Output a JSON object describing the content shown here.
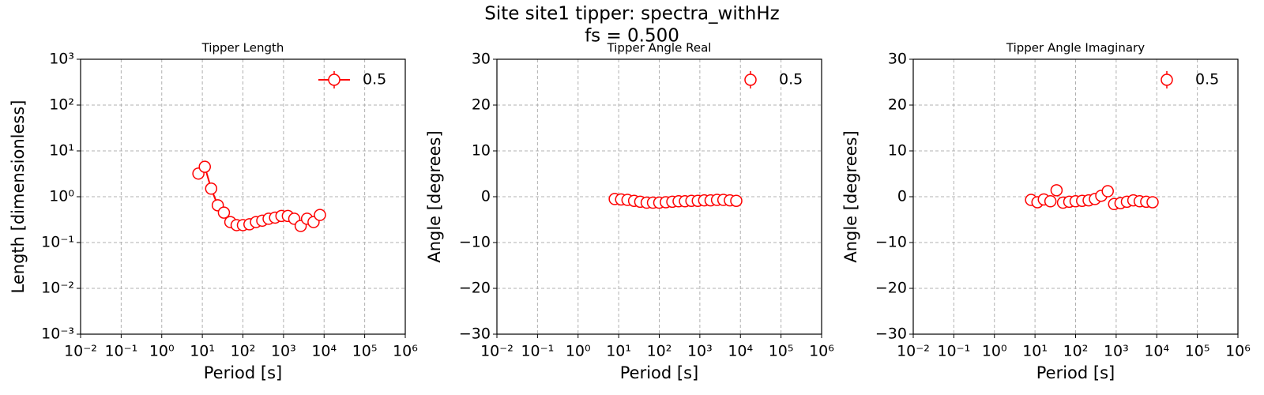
{
  "title": "Site site1 tipper: spectra_withHz",
  "subtitle": "fs = 0.500",
  "chart_data": [
    {
      "type": "line",
      "title": "Tipper Length",
      "xlabel": "Period [s]",
      "ylabel": "Length [dimensionless]",
      "x": [
        8,
        11.5,
        16.5,
        24,
        34,
        49,
        70,
        100,
        145,
        210,
        300,
        430,
        620,
        890,
        1280,
        1840,
        2650,
        3800,
        5500,
        7900
      ],
      "series": [
        {
          "name": "0.5",
          "color": "#ff0000",
          "values": [
            3.2,
            4.5,
            1.5,
            0.65,
            0.45,
            0.28,
            0.24,
            0.24,
            0.25,
            0.28,
            0.3,
            0.33,
            0.35,
            0.38,
            0.38,
            0.33,
            0.23,
            0.33,
            0.28,
            0.4
          ]
        }
      ],
      "xscale": "log",
      "yscale": "log",
      "xlim": [
        0.01,
        1000000
      ],
      "ylim": [
        0.001,
        1000
      ],
      "xticks": [
        {
          "value": 0.01,
          "label": "10⁻²"
        },
        {
          "value": 0.1,
          "label": "10⁻¹"
        },
        {
          "value": 1,
          "label": "10⁰"
        },
        {
          "value": 10,
          "label": "10¹"
        },
        {
          "value": 100,
          "label": "10²"
        },
        {
          "value": 1000,
          "label": "10³"
        },
        {
          "value": 10000,
          "label": "10⁴"
        },
        {
          "value": 100000,
          "label": "10⁵"
        },
        {
          "value": 1000000,
          "label": "10⁶"
        }
      ],
      "yticks": [
        {
          "value": 0.001,
          "label": "10⁻³"
        },
        {
          "value": 0.01,
          "label": "10⁻²"
        },
        {
          "value": 0.1,
          "label": "10⁻¹"
        },
        {
          "value": 1,
          "label": "10⁰"
        },
        {
          "value": 10,
          "label": "10¹"
        },
        {
          "value": 100,
          "label": "10²"
        },
        {
          "value": 1000,
          "label": "10³"
        }
      ],
      "grid": true,
      "legend": "upper right"
    },
    {
      "type": "scatter",
      "title": "Tipper Angle Real",
      "xlabel": "Period [s]",
      "ylabel": "Angle [degrees]",
      "x": [
        8,
        11.5,
        16.5,
        24,
        34,
        49,
        70,
        100,
        145,
        210,
        300,
        430,
        620,
        890,
        1280,
        1840,
        2650,
        3800,
        5500,
        7900
      ],
      "series": [
        {
          "name": "0.5",
          "color": "#ff0000",
          "values": [
            -0.5,
            -0.6,
            -0.7,
            -0.9,
            -1.1,
            -1.3,
            -1.3,
            -1.3,
            -1.2,
            -1.1,
            -1.0,
            -1.0,
            -0.9,
            -0.9,
            -0.8,
            -0.8,
            -0.7,
            -0.7,
            -0.8,
            -0.9
          ]
        }
      ],
      "xscale": "log",
      "yscale": "linear",
      "xlim": [
        0.01,
        1000000
      ],
      "ylim": [
        -30,
        30
      ],
      "xticks": [
        {
          "value": 0.01,
          "label": "10⁻²"
        },
        {
          "value": 0.1,
          "label": "10⁻¹"
        },
        {
          "value": 1,
          "label": "10⁰"
        },
        {
          "value": 10,
          "label": "10¹"
        },
        {
          "value": 100,
          "label": "10²"
        },
        {
          "value": 1000,
          "label": "10³"
        },
        {
          "value": 10000,
          "label": "10⁴"
        },
        {
          "value": 100000,
          "label": "10⁵"
        },
        {
          "value": 1000000,
          "label": "10⁶"
        }
      ],
      "yticks": [
        {
          "value": -30,
          "label": "−30"
        },
        {
          "value": -20,
          "label": "−20"
        },
        {
          "value": -10,
          "label": "−10"
        },
        0,
        10,
        20,
        30
      ],
      "grid": true,
      "legend": "upper right"
    },
    {
      "type": "scatter",
      "title": "Tipper Angle Imaginary",
      "xlabel": "Period [s]",
      "ylabel": "Angle [degrees]",
      "x": [
        8,
        11.5,
        16.5,
        24,
        34,
        49,
        70,
        100,
        145,
        210,
        300,
        430,
        620,
        890,
        1280,
        1840,
        2650,
        3800,
        5500,
        7900
      ],
      "series": [
        {
          "name": "0.5",
          "color": "#ff0000",
          "values": [
            -0.7,
            -1.2,
            -0.6,
            -1.0,
            1.4,
            -1.3,
            -1.1,
            -1.0,
            -0.9,
            -0.8,
            -0.5,
            0.2,
            1.2,
            -1.6,
            -1.4,
            -1.1,
            -0.8,
            -1.0,
            -1.1,
            -1.2
          ]
        }
      ],
      "xscale": "log",
      "yscale": "linear",
      "xlim": [
        0.01,
        1000000
      ],
      "ylim": [
        -30,
        30
      ],
      "xticks": [
        {
          "value": 0.01,
          "label": "10⁻²"
        },
        {
          "value": 0.1,
          "label": "10⁻¹"
        },
        {
          "value": 1,
          "label": "10⁰"
        },
        {
          "value": 10,
          "label": "10¹"
        },
        {
          "value": 100,
          "label": "10²"
        },
        {
          "value": 1000,
          "label": "10³"
        },
        {
          "value": 10000,
          "label": "10⁴"
        },
        {
          "value": 100000,
          "label": "10⁵"
        },
        {
          "value": 1000000,
          "label": "10⁶"
        }
      ],
      "yticks": [
        {
          "value": -30,
          "label": "−30"
        },
        {
          "value": -20,
          "label": "−20"
        },
        {
          "value": -10,
          "label": "−10"
        },
        0,
        10,
        20,
        30
      ],
      "grid": true,
      "legend": "upper right"
    }
  ]
}
